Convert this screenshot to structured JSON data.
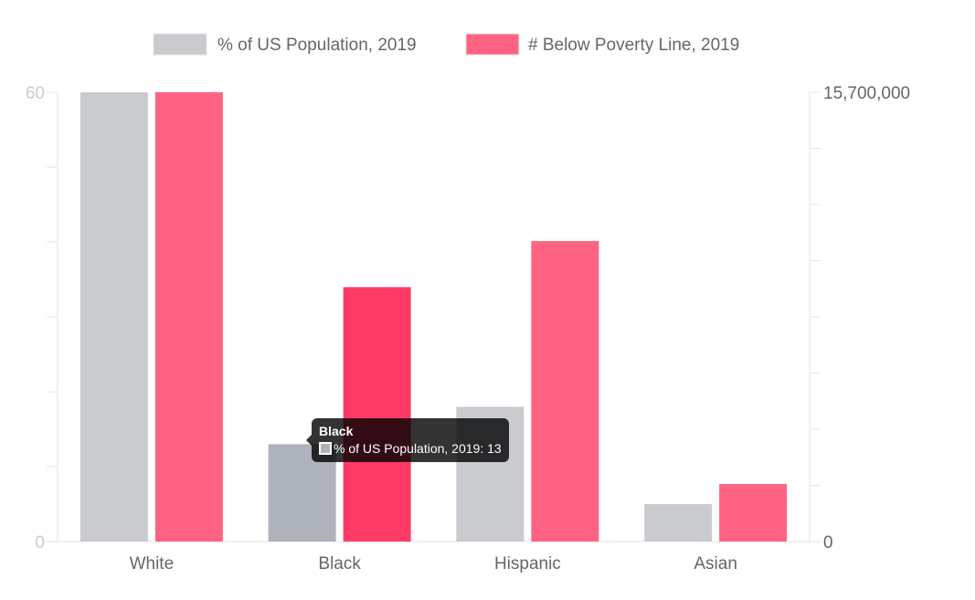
{
  "chart_data": {
    "type": "bar",
    "title": "",
    "categories": [
      "White",
      "Black",
      "Hispanic",
      "Asian"
    ],
    "series": [
      {
        "name": "% of US Population, 2019",
        "axis": "left",
        "color": "#C9CBCF",
        "hover_color": "#AEB2BA",
        "values": [
          60,
          13,
          18,
          5
        ]
      },
      {
        "name": "# Below Poverty Line, 2019",
        "axis": "right",
        "color": "#FF6384",
        "hover_color": "#FF3A67",
        "values": [
          15700000,
          8890000,
          10500000,
          2010000
        ]
      }
    ],
    "y_left": {
      "range": [
        0,
        60
      ],
      "tick_labels": [
        "0",
        "60"
      ],
      "intervals": 6,
      "label_color": "#C9CBCF"
    },
    "y_right": {
      "range": [
        0,
        15700000
      ],
      "tick_labels": [
        "0",
        "15,700,000"
      ],
      "intervals": 8,
      "label_color": "#666666"
    },
    "xlabel": "",
    "ylabel": "",
    "grid": false,
    "legend_position": "top-center",
    "hovered_category": "Black"
  },
  "tooltip": {
    "title": "Black",
    "label": "% of US Population, 2019: 13",
    "swatch_color": "#AEB2BA"
  }
}
